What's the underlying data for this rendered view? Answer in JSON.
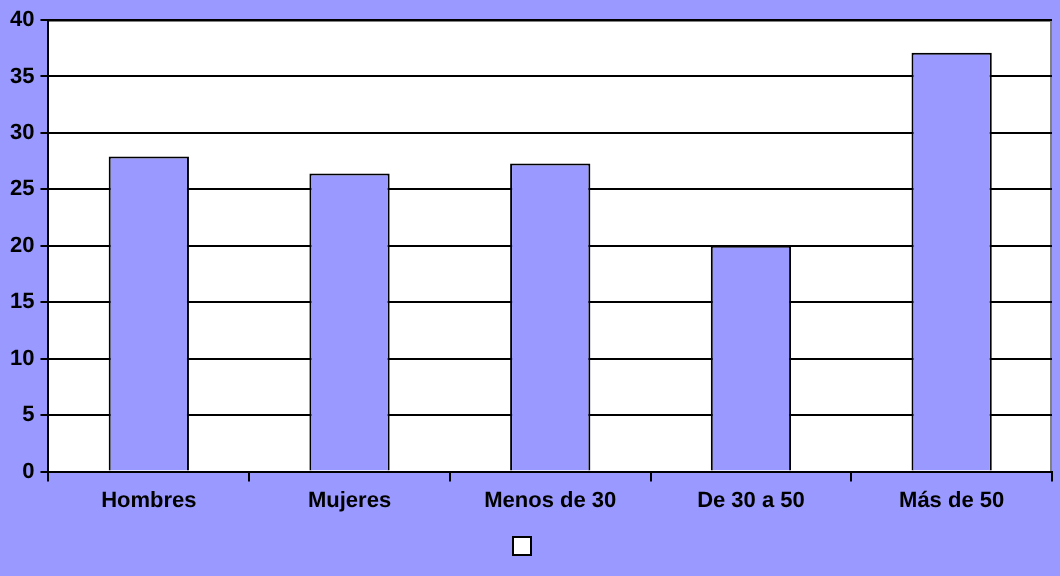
{
  "chart_data": {
    "type": "bar",
    "categories": [
      "Hombres",
      "Mujeres",
      "Menos de 30",
      "De 30 a 50",
      "Más de 50"
    ],
    "series": [
      {
        "color": "#9999ff",
        "values": [
          27.9,
          26.4,
          27.3,
          20,
          37.1
        ]
      }
    ],
    "ylim": [
      0,
      40
    ],
    "yticks": [
      0,
      5,
      10,
      15,
      20,
      25,
      30,
      35,
      40
    ],
    "grid": "y"
  }
}
